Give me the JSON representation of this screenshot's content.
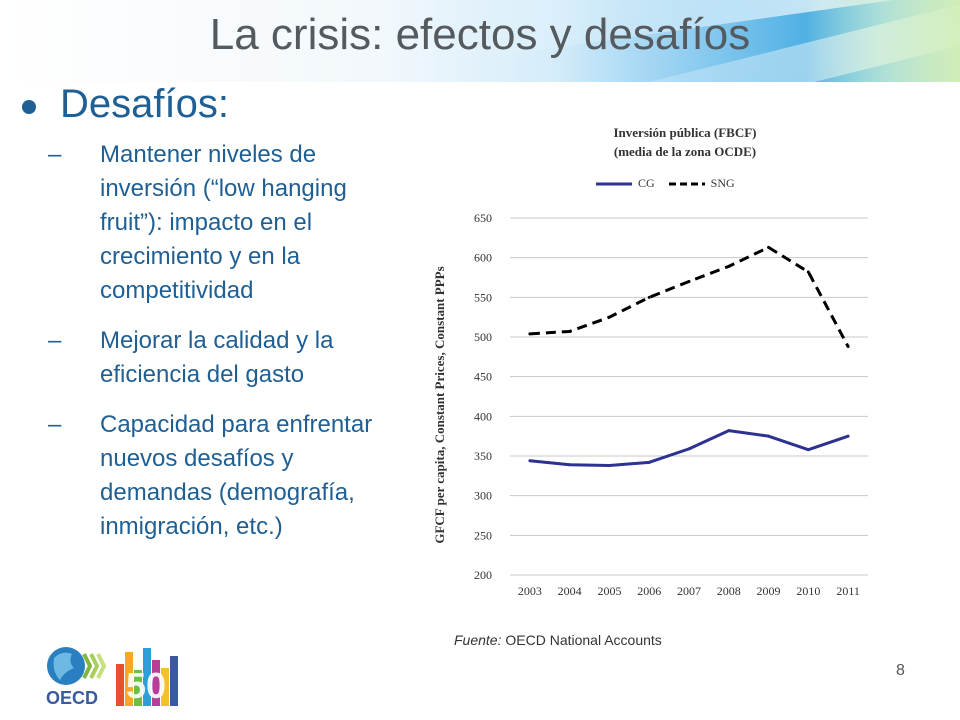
{
  "slide": {
    "title": "La crisis: efectos y desafíos",
    "bullet": "Desafíos:",
    "sub_items": [
      "Mantener niveles de inversión (“low hanging fruit”): impacto en el crecimiento y en la competitividad",
      "Mejorar la calidad y la eficiencia del gasto",
      "Capacidad para enfrentar nuevos desafíos y demandas (demografía, inmigración, etc.)"
    ],
    "dash": "–",
    "source_label": "Fuente:",
    "source_text": " OECD National Accounts",
    "page_number": "8",
    "logo_text": "OECD",
    "logo_number": "50"
  },
  "chart_data": {
    "type": "line",
    "title_line1": "Inversión pública  (FBCF)",
    "title_line2": "(media de la zona OCDE)",
    "ylabel": "GFCF per capita, Constant Prices, Constant PPPs",
    "xlabel": "",
    "categories": [
      "2003",
      "2004",
      "2005",
      "2006",
      "2007",
      "2008",
      "2009",
      "2010",
      "2011"
    ],
    "yticks": [
      "200",
      "250",
      "300",
      "350",
      "400",
      "450",
      "500",
      "550",
      "600",
      "650"
    ],
    "ylim": [
      200,
      650
    ],
    "grid": "horizontal",
    "legend_position": "top",
    "series": [
      {
        "name": "CG",
        "style": "solid",
        "color": "#2e3192",
        "values": [
          344,
          339,
          338,
          342,
          359,
          382,
          375,
          358,
          375
        ]
      },
      {
        "name": "SNG",
        "style": "dashed",
        "color": "#000000",
        "values": [
          504,
          507,
          525,
          550,
          570,
          589,
          613,
          582,
          488
        ]
      }
    ]
  },
  "colors": {
    "accent": "#1f5f93",
    "title": "#555a5e"
  }
}
